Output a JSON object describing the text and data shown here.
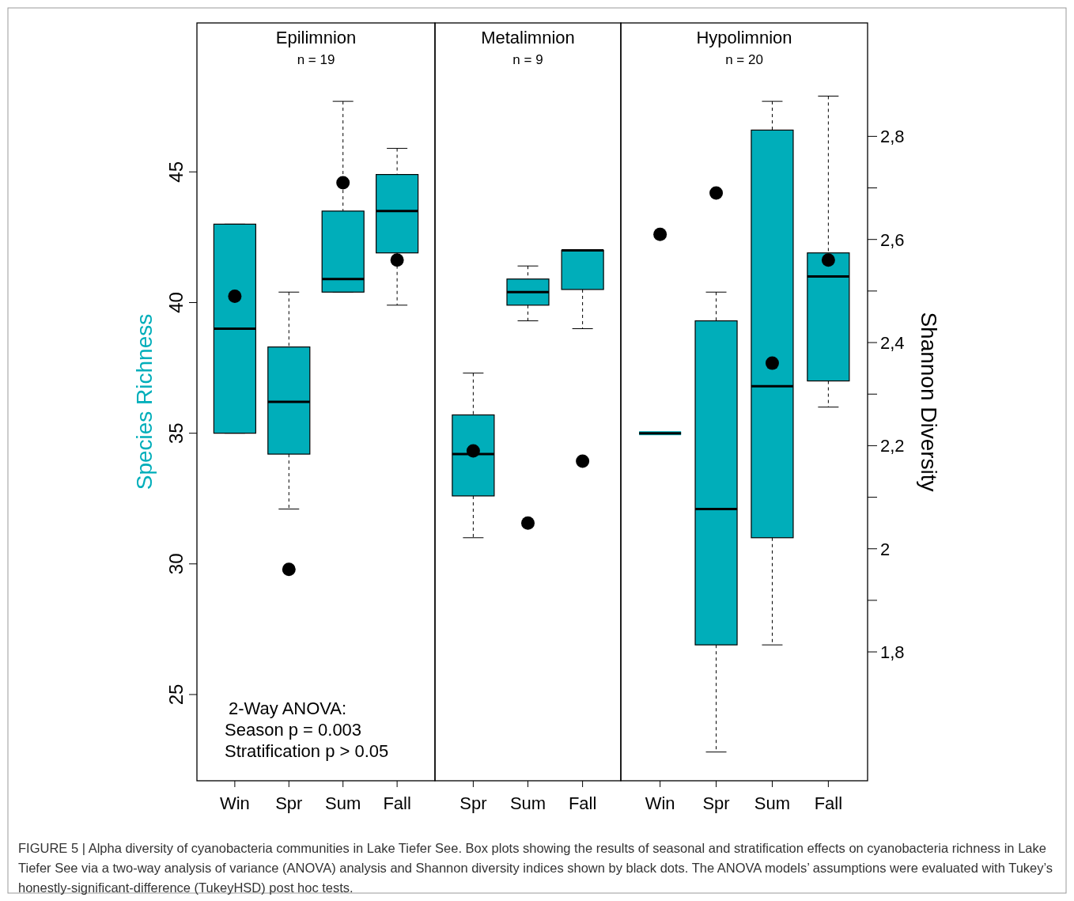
{
  "chart_data": [
    {
      "type": "box",
      "title": "Epilimnion",
      "subtitle": "n = 19",
      "ylabel": "Species Richness",
      "categories": [
        "Win",
        "Spr",
        "Sum",
        "Fall"
      ],
      "ylim": [
        21.7,
        50.7
      ],
      "yticks": [
        25,
        30,
        35,
        40,
        45
      ],
      "y2lim": [
        1.55,
        3.02
      ],
      "tick_labels": [
        "x",
        "y"
      ],
      "annotations": [
        "2-Way ANOVA:",
        "Season p = 0.003",
        "Stratification p > 0.05"
      ],
      "series": [
        {
          "type": "box",
          "color": "#00aeba",
          "boxes": [
            {
              "low": 35,
              "q1": 35,
              "median": 39,
              "q3": 43,
              "high": 43
            },
            {
              "low": 32.1,
              "q1": 34.2,
              "median": 36.2,
              "q3": 38.3,
              "high": 40.4
            },
            {
              "low": 40.4,
              "q1": 40.4,
              "median": 40.9,
              "q3": 43.5,
              "high": 47.7
            },
            {
              "low": 39.9,
              "q1": 41.9,
              "median": 43.5,
              "q3": 44.9,
              "high": 45.9
            }
          ]
        },
        {
          "type": "scatter",
          "axis": "y2",
          "color": "#000000",
          "marker": "circle",
          "x": [
            "Win",
            "Spr",
            "Sum",
            "Fall"
          ],
          "values": [
            2.49,
            1.96,
            2.71,
            2.56
          ]
        }
      ]
    },
    {
      "type": "box",
      "title": "Metalimnion",
      "subtitle": "n = 9",
      "categories": [
        "Spr",
        "Sum",
        "Fall"
      ],
      "ylim": [
        21.7,
        50.7
      ],
      "y2lim": [
        1.55,
        3.02
      ],
      "tick_labels": [
        "x"
      ],
      "series": [
        {
          "type": "box",
          "color": "#00aeba",
          "boxes": [
            {
              "low": 31,
              "q1": 32.6,
              "median": 34.2,
              "q3": 35.7,
              "high": 37.3
            },
            {
              "low": 39.3,
              "q1": 39.9,
              "median": 40.4,
              "q3": 40.9,
              "high": 41.4
            },
            {
              "low": 39,
              "q1": 40.5,
              "median": 42,
              "q3": 42,
              "high": 42
            }
          ]
        },
        {
          "type": "scatter",
          "axis": "y2",
          "color": "#000000",
          "marker": "circle",
          "x": [
            "Spr",
            "Sum",
            "Fall"
          ],
          "values": [
            2.19,
            2.05,
            2.17
          ]
        }
      ]
    },
    {
      "type": "box",
      "title": "Hypolimnion",
      "subtitle": "n = 20",
      "y2label": "Shannon Diversity",
      "categories": [
        "Win",
        "Spr",
        "Sum",
        "Fall"
      ],
      "ylim": [
        21.7,
        50.7
      ],
      "y2lim": [
        1.55,
        3.02
      ],
      "y2ticks": [
        {
          "value": 2.8,
          "label": "2,8"
        },
        {
          "value": 2.7,
          "label": null
        },
        {
          "value": 2.6,
          "label": "2,6"
        },
        {
          "value": 2.5,
          "label": null
        },
        {
          "value": 2.4,
          "label": "2,4"
        },
        {
          "value": 2.3,
          "label": null
        },
        {
          "value": 2.2,
          "label": "2,2"
        },
        {
          "value": 2.1,
          "label": null
        },
        {
          "value": 2,
          "label": "2"
        },
        {
          "value": 1.9,
          "label": null
        },
        {
          "value": 1.8,
          "label": "1,8"
        }
      ],
      "tick_labels": [
        "x",
        "y2"
      ],
      "annotations": [
        "FIGURE 5 | Alpha diversity of cyanobacteria communities in Lake Tiefer See. Box plots showing the results of seasonal and stratification effects on cyanobacteria richness in Lake Tiefer See via a two-way analysis of variance (ANOVA) analysis and Shannon diversity indices shown by black dots. The ANOVA models’ assumptions were evaluated with Tukey’s honestly-significant-difference (TukeyHSD) post hoc tests."
      ],
      "series": [
        {
          "type": "box",
          "color": "#00aeba",
          "boxes": [
            {
              "low": 35,
              "q1": 35,
              "median": 35,
              "q3": 35,
              "high": 35
            },
            {
              "low": 22.8,
              "q1": 26.9,
              "median": 32.1,
              "q3": 39.3,
              "high": 40.4
            },
            {
              "low": 26.9,
              "q1": 31,
              "median": 36.8,
              "q3": 46.6,
              "high": 47.7
            },
            {
              "low": 36,
              "q1": 37,
              "median": 41,
              "q3": 41.9,
              "high": 47.9
            }
          ]
        },
        {
          "type": "scatter",
          "axis": "y2",
          "color": "#000000",
          "marker": "circle",
          "x": [
            "Win",
            "Spr",
            "Sum",
            "Fall"
          ],
          "values": [
            2.61,
            2.69,
            2.36,
            2.56
          ]
        }
      ]
    }
  ]
}
